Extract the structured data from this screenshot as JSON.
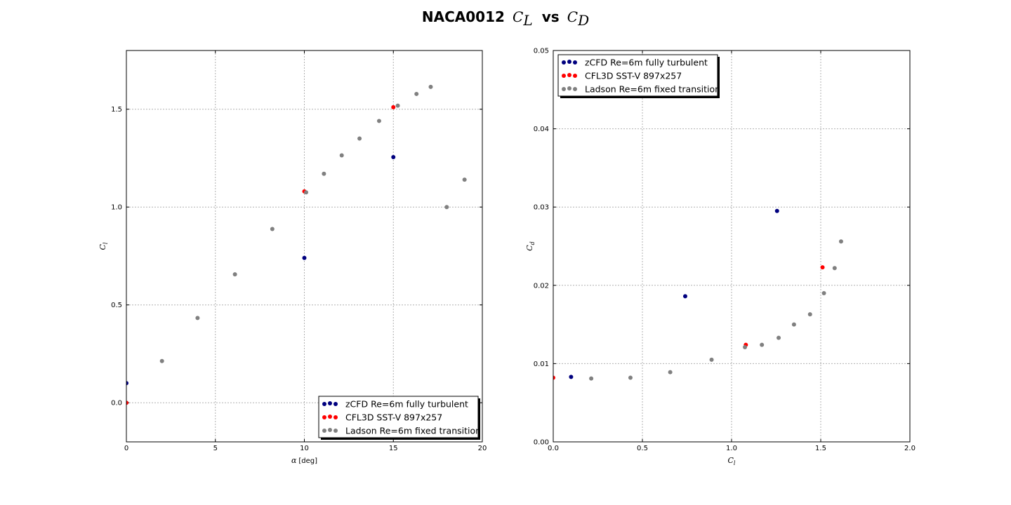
{
  "figure": {
    "title_prefix": "NACA0012",
    "title_var1": "C",
    "title_var1_sub": "L",
    "title_sep": "vs",
    "title_var2": "C",
    "title_var2_sub": "D"
  },
  "colors": {
    "zcfd": "#00007f",
    "cfl3d": "#ff0000",
    "ladson": "#808080"
  },
  "chart_data": [
    {
      "type": "scatter",
      "xlabel_symbol": "α",
      "xlabel_unit": "[deg]",
      "ylabel_symbol": "C",
      "ylabel_sub": "l",
      "xlim": [
        0,
        20
      ],
      "ylim": [
        -0.2,
        1.8
      ],
      "xticks": [
        "0",
        "5",
        "10",
        "15",
        "20"
      ],
      "yticks": [
        "0.0",
        "0.5",
        "1.0",
        "1.5"
      ],
      "grid": true,
      "legend_position": "lower-right",
      "series": [
        {
          "name": "zCFD Re=6m fully turbulent",
          "color_key": "zcfd",
          "x": [
            0,
            10,
            15
          ],
          "y": [
            0.1,
            0.74,
            1.255
          ]
        },
        {
          "name": "CFL3D SST-V 897x257",
          "color_key": "cfl3d",
          "x": [
            0,
            10,
            15
          ],
          "y": [
            0.0,
            1.08,
            1.51
          ]
        },
        {
          "name": "Ladson Re=6m fixed transition",
          "color_key": "ladson",
          "x": [
            2.0,
            4.0,
            6.1,
            8.2,
            10.1,
            11.1,
            12.1,
            13.1,
            14.2,
            15.25,
            16.3,
            17.1,
            18.0,
            19.0
          ],
          "y": [
            0.213,
            0.433,
            0.656,
            0.888,
            1.075,
            1.17,
            1.264,
            1.35,
            1.44,
            1.518,
            1.578,
            1.614,
            1.0,
            1.14
          ]
        }
      ]
    },
    {
      "type": "scatter",
      "xlabel_symbol": "C",
      "xlabel_sub": "l",
      "ylabel_symbol": "C",
      "ylabel_sub": "d",
      "xlim": [
        0,
        2
      ],
      "ylim": [
        0,
        0.05
      ],
      "xticks": [
        "0.0",
        "0.5",
        "1.0",
        "1.5",
        "2.0"
      ],
      "yticks": [
        "0.00",
        "0.01",
        "0.02",
        "0.03",
        "0.04",
        "0.05"
      ],
      "grid": true,
      "legend_position": "upper-left",
      "series": [
        {
          "name": "zCFD Re=6m fully turbulent",
          "color_key": "zcfd",
          "x": [
            0.1,
            0.74,
            1.255
          ],
          "y": [
            0.0083,
            0.0186,
            0.0295
          ]
        },
        {
          "name": "CFL3D SST-V 897x257",
          "color_key": "cfl3d",
          "x": [
            0.0,
            1.08,
            1.51
          ],
          "y": [
            0.0082,
            0.0124,
            0.0223
          ]
        },
        {
          "name": "Ladson Re=6m fixed transition",
          "color_key": "ladson",
          "x": [
            0.213,
            0.433,
            0.656,
            0.888,
            1.075,
            1.17,
            1.264,
            1.35,
            1.44,
            1.518,
            1.578,
            1.614
          ],
          "y": [
            0.0081,
            0.0082,
            0.0089,
            0.0105,
            0.0121,
            0.0124,
            0.0133,
            0.015,
            0.0163,
            0.019,
            0.0222,
            0.0256
          ]
        }
      ]
    }
  ]
}
